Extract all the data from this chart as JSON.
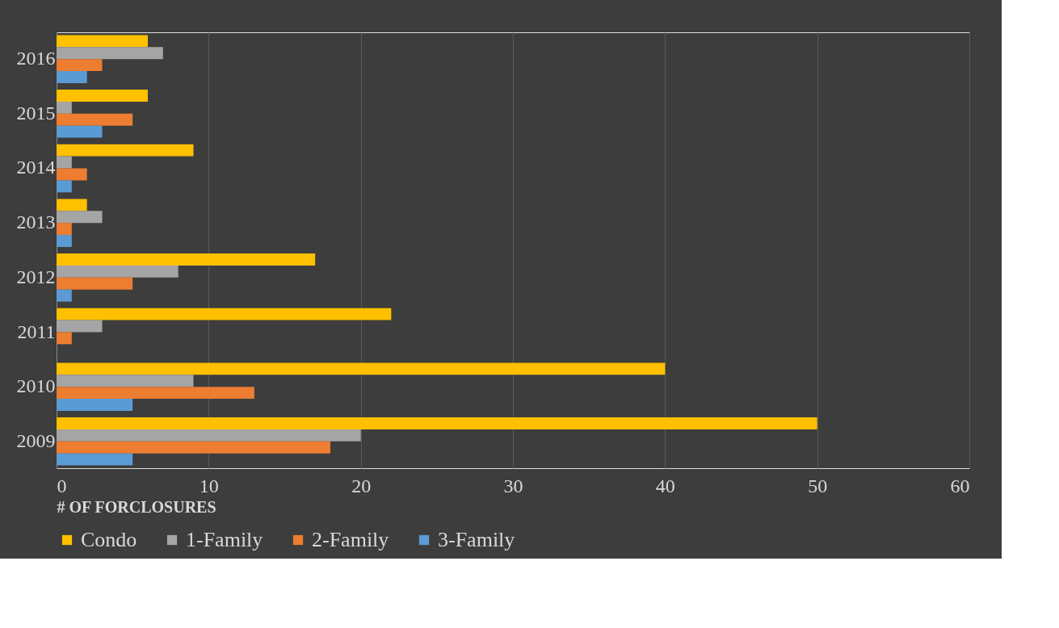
{
  "chart_data": {
    "type": "bar",
    "orientation": "horizontal",
    "xlabel": "# OF FORCLOSURES",
    "categories": [
      "2016",
      "2015",
      "2014",
      "2013",
      "2012",
      "2011",
      "2010",
      "2009"
    ],
    "series": [
      {
        "name": "Condo",
        "color": "#ffc000",
        "values": [
          6,
          6,
          9,
          2,
          17,
          22,
          40,
          50
        ]
      },
      {
        "name": "1-Family",
        "color": "#a5a5a5",
        "values": [
          7,
          1,
          1,
          3,
          8,
          3,
          9,
          20
        ]
      },
      {
        "name": "2-Family",
        "color": "#ed7d31",
        "values": [
          3,
          5,
          2,
          1,
          5,
          1,
          13,
          18
        ]
      },
      {
        "name": "3-Family",
        "color": "#5b9bd5",
        "values": [
          2,
          3,
          1,
          1,
          1,
          0,
          5,
          5
        ]
      }
    ],
    "xlim": [
      0,
      60
    ],
    "xticks": [
      0,
      10,
      20,
      30,
      40,
      50,
      60
    ],
    "grid": "x",
    "legend": "bottom"
  }
}
